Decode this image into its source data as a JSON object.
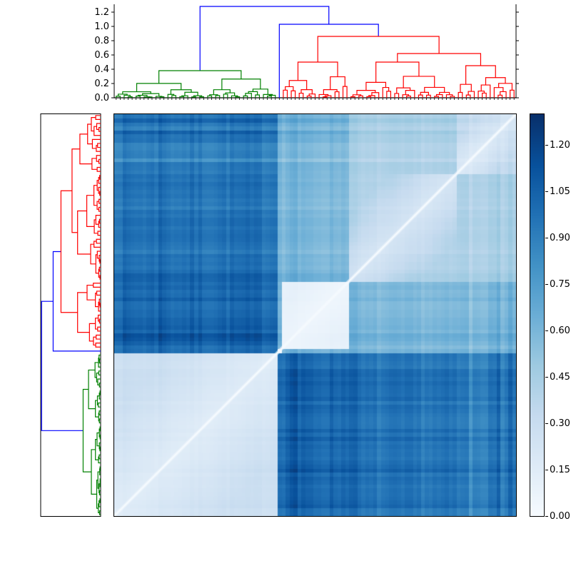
{
  "chart_data": {
    "type": "heatmap",
    "subtype": "clustered-distance-matrix-with-dendrograms",
    "background": "#ffffff",
    "colormap": {
      "name": "Blues",
      "vmin": 0.0,
      "vmax": 1.3,
      "anchors": [
        "#f7fbff",
        "#deebf7",
        "#c6dbef",
        "#9ecae1",
        "#6baed6",
        "#4292c6",
        "#2171b5",
        "#08519c",
        "#08306b"
      ]
    },
    "colorbar": {
      "ticks": [
        {
          "v": 0.0,
          "label": "0.00"
        },
        {
          "v": 0.15,
          "label": "0.15"
        },
        {
          "v": 0.3,
          "label": "0.30"
        },
        {
          "v": 0.45,
          "label": "0.45"
        },
        {
          "v": 0.6,
          "label": "0.60"
        },
        {
          "v": 0.75,
          "label": "0.75"
        },
        {
          "v": 0.9,
          "label": "0.90"
        },
        {
          "v": 1.05,
          "label": "1.05"
        },
        {
          "v": 1.2,
          "label": "1.20"
        }
      ]
    },
    "top_axis": {
      "ticks": [
        {
          "v": 0.0,
          "label": "0.0"
        },
        {
          "v": 0.2,
          "label": "0.2"
        },
        {
          "v": 0.4,
          "label": "0.4"
        },
        {
          "v": 0.6,
          "label": "0.6"
        },
        {
          "v": 0.8,
          "label": "0.8"
        },
        {
          "v": 1.0,
          "label": "1.0"
        },
        {
          "v": 1.2,
          "label": "1.2"
        }
      ],
      "axis_max": 1.31
    },
    "dendrogram": {
      "color_threshold": 0.91,
      "link_colors": {
        "above_threshold": "#0000ff",
        "cluster_green": "#008000",
        "cluster_red": "#ff0000"
      },
      "root_height": 1.28,
      "blue_merge_height": 1.03,
      "green_root_height": 0.38,
      "red_root_height": 0.86,
      "redA_root_height": 0.5,
      "redB_root_height": 0.62,
      "redB1_root_height": 0.5,
      "redB2_root_height": 0.45,
      "leaf_count": 101
    },
    "segments": [
      {
        "id": "green",
        "leaves": 41,
        "cluster_color": "#008000"
      },
      {
        "id": "singleton",
        "leaves": 1,
        "cluster_color": "#0000ff"
      },
      {
        "id": "redA",
        "leaves": 17,
        "cluster_color": "#ff0000"
      },
      {
        "id": "redB1",
        "leaves": 27,
        "cluster_color": "#ff0000"
      },
      {
        "id": "redB2",
        "leaves": 15,
        "cluster_color": "#ff0000"
      }
    ],
    "row_order_note": "rows are the same leaves in reversed order; white matrix diagonal runs bottom-left to top-right",
    "block_values": {
      "green": {
        "green": 0.22,
        "singleton": 1.0,
        "redA": 1.03,
        "redB1": 0.95,
        "redB2": 0.93
      },
      "singleton": {
        "green": 1.0,
        "singleton": 0.0,
        "redA": 0.62,
        "redB1": 0.6,
        "redB2": 0.63
      },
      "redA": {
        "green": 1.03,
        "singleton": 0.62,
        "redA": 0.08,
        "redB1": 0.58,
        "redB2": 0.6
      },
      "redB1": {
        "green": 0.95,
        "singleton": 0.6,
        "redA": 0.58,
        "redB1": 0.3,
        "redB2": 0.42
      },
      "redB2": {
        "green": 0.93,
        "singleton": 0.63,
        "redA": 0.6,
        "redB1": 0.42,
        "redB2": 0.25
      }
    },
    "stripe_leaves": {
      "11": 0.12,
      "44": 0.1,
      "45": 0.12,
      "59": 0.16,
      "60": 0.1,
      "89": -0.15,
      "96": 0.13,
      "99": 0.13
    },
    "texture": {
      "leaf_jitter_amp": 0.055,
      "diagonal_value": 0.015
    }
  }
}
